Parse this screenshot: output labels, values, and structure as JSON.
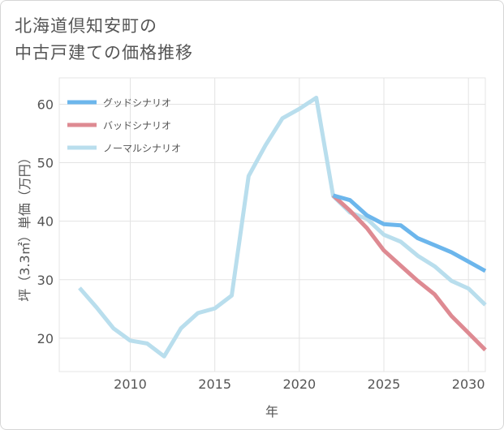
{
  "title_line1": "北海道倶知安町の",
  "title_line2": "中古戸建ての価格推移",
  "chart_data": {
    "type": "line",
    "xlabel": "年",
    "ylabel": "坪（3.3㎡）単価（万円）",
    "xlim": [
      2005.8,
      2031
    ],
    "ylim": [
      14.3,
      64.5
    ],
    "x_ticks": [
      2010,
      2015,
      2020,
      2025,
      2030
    ],
    "y_ticks": [
      20,
      30,
      40,
      50,
      60
    ],
    "legend_position": "top-left",
    "series": [
      {
        "name": "グッドシナリオ",
        "color": "#6cb6ec",
        "x": [
          2022,
          2023,
          2024,
          2025,
          2026,
          2027,
          2028,
          2029,
          2030,
          2031
        ],
        "values": [
          44.4,
          43.6,
          41.0,
          39.5,
          39.3,
          37.1,
          35.9,
          34.7,
          33.1,
          31.5
        ]
      },
      {
        "name": "バッドシナリオ",
        "color": "#de8a92",
        "x": [
          2022,
          2023,
          2024,
          2025,
          2026,
          2027,
          2028,
          2029,
          2030,
          2031
        ],
        "values": [
          44.4,
          41.8,
          38.8,
          35.0,
          32.4,
          29.8,
          27.5,
          23.8,
          20.9,
          18.0
        ]
      },
      {
        "name": "ノーマルシナリオ",
        "color": "#b9deed",
        "x": [
          2007,
          2008,
          2009,
          2010,
          2011,
          2012,
          2013,
          2014,
          2015,
          2016,
          2017,
          2018,
          2019,
          2020,
          2021,
          2022,
          2023,
          2024,
          2025,
          2026,
          2027,
          2028,
          2029,
          2030,
          2031
        ],
        "values": [
          28.6,
          25.3,
          21.7,
          19.6,
          19.1,
          16.9,
          21.7,
          24.3,
          25.1,
          27.3,
          47.7,
          53.0,
          57.6,
          59.2,
          61.1,
          44.3,
          41.5,
          40.4,
          37.7,
          36.5,
          34.1,
          32.3,
          29.8,
          28.5,
          25.7
        ]
      }
    ]
  }
}
